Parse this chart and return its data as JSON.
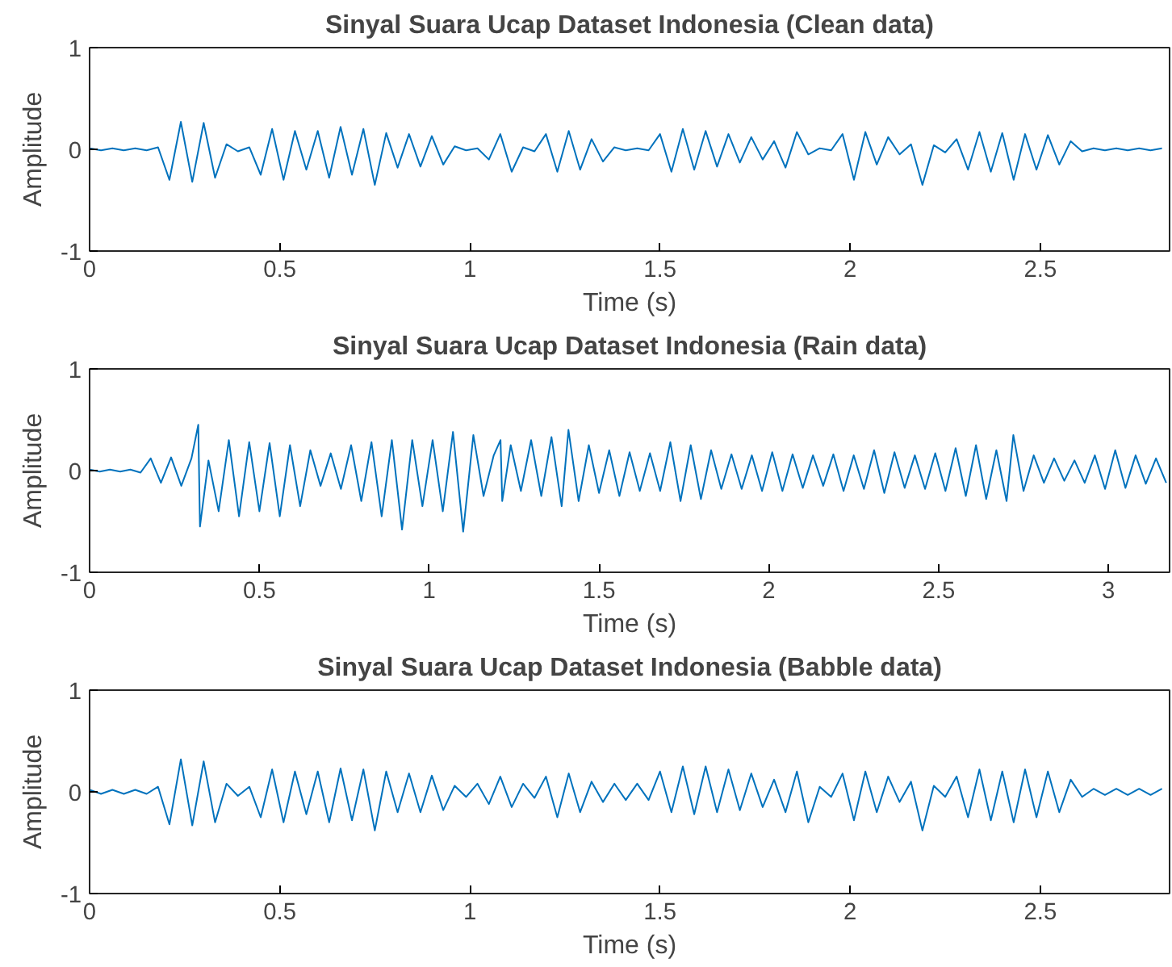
{
  "chart_data": [
    {
      "type": "line",
      "title": "Sinyal Suara Ucap Dataset Indonesia (Clean data)",
      "xlabel": "Time (s)",
      "ylabel": "Amplitude",
      "color": "#0072bd",
      "xlim": [
        0,
        2.84
      ],
      "ylim": [
        -1,
        1
      ],
      "xticks": [
        0,
        0.5,
        1,
        1.5,
        2,
        2.5
      ],
      "yticks": [
        -1,
        0,
        1
      ],
      "x": [
        0,
        0.03,
        0.06,
        0.09,
        0.12,
        0.15,
        0.18,
        0.21,
        0.24,
        0.27,
        0.3,
        0.33,
        0.36,
        0.39,
        0.42,
        0.45,
        0.48,
        0.51,
        0.54,
        0.57,
        0.6,
        0.63,
        0.66,
        0.69,
        0.72,
        0.75,
        0.78,
        0.81,
        0.84,
        0.87,
        0.9,
        0.93,
        0.96,
        0.99,
        1.02,
        1.05,
        1.08,
        1.11,
        1.14,
        1.17,
        1.2,
        1.23,
        1.26,
        1.29,
        1.32,
        1.35,
        1.38,
        1.41,
        1.44,
        1.47,
        1.5,
        1.53,
        1.56,
        1.59,
        1.62,
        1.65,
        1.68,
        1.71,
        1.74,
        1.77,
        1.8,
        1.83,
        1.86,
        1.89,
        1.92,
        1.95,
        1.98,
        2.01,
        2.04,
        2.07,
        2.1,
        2.13,
        2.16,
        2.19,
        2.22,
        2.25,
        2.28,
        2.31,
        2.34,
        2.37,
        2.4,
        2.43,
        2.46,
        2.49,
        2.52,
        2.55,
        2.58,
        2.61,
        2.64,
        2.67,
        2.7,
        2.73,
        2.76,
        2.79,
        2.82
      ],
      "values": [
        0.01,
        -0.01,
        0.01,
        -0.01,
        0.01,
        -0.01,
        0.02,
        -0.3,
        0.27,
        -0.32,
        0.26,
        -0.28,
        0.05,
        -0.02,
        0.02,
        -0.25,
        0.2,
        -0.3,
        0.18,
        -0.2,
        0.18,
        -0.28,
        0.22,
        -0.25,
        0.2,
        -0.35,
        0.16,
        -0.18,
        0.15,
        -0.17,
        0.13,
        -0.15,
        0.03,
        -0.01,
        0.01,
        -0.1,
        0.15,
        -0.22,
        0.02,
        -0.02,
        0.15,
        -0.22,
        0.18,
        -0.2,
        0.1,
        -0.12,
        0.02,
        -0.01,
        0.01,
        -0.01,
        0.15,
        -0.22,
        0.2,
        -0.2,
        0.18,
        -0.17,
        0.15,
        -0.13,
        0.12,
        -0.1,
        0.08,
        -0.18,
        0.17,
        -0.05,
        0.01,
        -0.01,
        0.15,
        -0.3,
        0.17,
        -0.15,
        0.12,
        -0.05,
        0.05,
        -0.35,
        0.04,
        -0.03,
        0.1,
        -0.2,
        0.17,
        -0.22,
        0.16,
        -0.3,
        0.15,
        -0.2,
        0.14,
        -0.15,
        0.08,
        -0.02,
        0.01,
        -0.01,
        0.01,
        -0.01,
        0.01,
        -0.01,
        0.01
      ]
    },
    {
      "type": "line",
      "title": "Sinyal Suara Ucap Dataset Indonesia (Rain data)",
      "xlabel": "Time (s)",
      "ylabel": "Amplitude",
      "color": "#0072bd",
      "xlim": [
        0,
        3.18
      ],
      "ylim": [
        -1,
        1
      ],
      "xticks": [
        0,
        0.5,
        1,
        1.5,
        2,
        2.5,
        3
      ],
      "yticks": [
        -1,
        0,
        1
      ],
      "x": [
        0,
        0.03,
        0.06,
        0.09,
        0.12,
        0.15,
        0.18,
        0.21,
        0.24,
        0.27,
        0.3,
        0.32,
        0.325,
        0.35,
        0.38,
        0.41,
        0.44,
        0.47,
        0.5,
        0.53,
        0.56,
        0.59,
        0.62,
        0.65,
        0.68,
        0.71,
        0.74,
        0.77,
        0.8,
        0.83,
        0.86,
        0.89,
        0.92,
        0.95,
        0.98,
        1.01,
        1.04,
        1.07,
        1.1,
        1.13,
        1.16,
        1.19,
        1.21,
        1.215,
        1.24,
        1.27,
        1.3,
        1.33,
        1.36,
        1.39,
        1.41,
        1.44,
        1.47,
        1.5,
        1.53,
        1.56,
        1.59,
        1.62,
        1.65,
        1.68,
        1.71,
        1.74,
        1.77,
        1.8,
        1.83,
        1.86,
        1.89,
        1.92,
        1.95,
        1.98,
        2.01,
        2.04,
        2.07,
        2.1,
        2.13,
        2.16,
        2.19,
        2.22,
        2.25,
        2.28,
        2.31,
        2.34,
        2.37,
        2.4,
        2.43,
        2.46,
        2.49,
        2.52,
        2.55,
        2.58,
        2.61,
        2.64,
        2.67,
        2.7,
        2.72,
        2.75,
        2.78,
        2.81,
        2.84,
        2.87,
        2.9,
        2.93,
        2.96,
        2.99,
        3.02,
        3.05,
        3.08,
        3.11,
        3.14,
        3.17
      ],
      "values": [
        0.01,
        -0.01,
        0.01,
        -0.01,
        0.01,
        -0.02,
        0.12,
        -0.12,
        0.13,
        -0.15,
        0.12,
        0.45,
        -0.55,
        0.1,
        -0.4,
        0.3,
        -0.45,
        0.28,
        -0.4,
        0.27,
        -0.45,
        0.25,
        -0.35,
        0.2,
        -0.15,
        0.17,
        -0.18,
        0.25,
        -0.3,
        0.28,
        -0.45,
        0.3,
        -0.58,
        0.3,
        -0.35,
        0.3,
        -0.4,
        0.38,
        -0.6,
        0.35,
        -0.25,
        0.15,
        0.3,
        -0.3,
        0.25,
        -0.2,
        0.3,
        -0.25,
        0.33,
        -0.35,
        0.4,
        -0.3,
        0.25,
        -0.22,
        0.2,
        -0.25,
        0.18,
        -0.2,
        0.17,
        -0.2,
        0.28,
        -0.3,
        0.25,
        -0.28,
        0.2,
        -0.18,
        0.16,
        -0.18,
        0.15,
        -0.2,
        0.18,
        -0.2,
        0.16,
        -0.17,
        0.15,
        -0.15,
        0.16,
        -0.2,
        0.15,
        -0.18,
        0.2,
        -0.22,
        0.18,
        -0.17,
        0.15,
        -0.18,
        0.17,
        -0.2,
        0.22,
        -0.25,
        0.25,
        -0.28,
        0.2,
        -0.3,
        0.35,
        -0.2,
        0.15,
        -0.12,
        0.12,
        -0.1,
        0.1,
        -0.12,
        0.15,
        -0.18,
        0.2,
        -0.17,
        0.15,
        -0.13,
        0.12,
        -0.12
      ]
    },
    {
      "type": "line",
      "title": "Sinyal Suara Ucap Dataset Indonesia (Babble data)",
      "xlabel": "Time (s)",
      "ylabel": "Amplitude",
      "color": "#0072bd",
      "xlim": [
        0,
        2.84
      ],
      "ylim": [
        -1,
        1
      ],
      "xticks": [
        0,
        0.5,
        1,
        1.5,
        2,
        2.5
      ],
      "yticks": [
        -1,
        0,
        1
      ],
      "x": [
        0,
        0.03,
        0.06,
        0.09,
        0.12,
        0.15,
        0.18,
        0.21,
        0.24,
        0.27,
        0.3,
        0.33,
        0.36,
        0.39,
        0.42,
        0.45,
        0.48,
        0.51,
        0.54,
        0.57,
        0.6,
        0.63,
        0.66,
        0.69,
        0.72,
        0.75,
        0.78,
        0.81,
        0.84,
        0.87,
        0.9,
        0.93,
        0.96,
        0.99,
        1.02,
        1.05,
        1.08,
        1.11,
        1.14,
        1.17,
        1.2,
        1.23,
        1.26,
        1.29,
        1.32,
        1.35,
        1.38,
        1.41,
        1.44,
        1.47,
        1.5,
        1.53,
        1.56,
        1.59,
        1.62,
        1.65,
        1.68,
        1.71,
        1.74,
        1.77,
        1.8,
        1.83,
        1.86,
        1.89,
        1.92,
        1.95,
        1.98,
        2.01,
        2.04,
        2.07,
        2.1,
        2.13,
        2.16,
        2.19,
        2.22,
        2.25,
        2.28,
        2.31,
        2.34,
        2.37,
        2.4,
        2.43,
        2.46,
        2.49,
        2.52,
        2.55,
        2.58,
        2.61,
        2.64,
        2.67,
        2.7,
        2.73,
        2.76,
        2.79,
        2.82
      ],
      "values": [
        0.02,
        -0.02,
        0.02,
        -0.02,
        0.02,
        -0.02,
        0.05,
        -0.32,
        0.32,
        -0.33,
        0.3,
        -0.3,
        0.08,
        -0.04,
        0.05,
        -0.25,
        0.22,
        -0.3,
        0.2,
        -0.22,
        0.2,
        -0.3,
        0.23,
        -0.28,
        0.22,
        -0.38,
        0.2,
        -0.2,
        0.18,
        -0.2,
        0.16,
        -0.18,
        0.06,
        -0.05,
        0.08,
        -0.12,
        0.15,
        -0.15,
        0.08,
        -0.06,
        0.15,
        -0.25,
        0.18,
        -0.2,
        0.1,
        -0.1,
        0.08,
        -0.08,
        0.08,
        -0.08,
        0.2,
        -0.2,
        0.25,
        -0.22,
        0.25,
        -0.2,
        0.22,
        -0.18,
        0.18,
        -0.15,
        0.12,
        -0.2,
        0.2,
        -0.3,
        0.05,
        -0.05,
        0.18,
        -0.28,
        0.2,
        -0.2,
        0.15,
        -0.1,
        0.1,
        -0.38,
        0.06,
        -0.05,
        0.15,
        -0.25,
        0.22,
        -0.28,
        0.2,
        -0.3,
        0.22,
        -0.25,
        0.2,
        -0.2,
        0.12,
        -0.05,
        0.03,
        -0.03,
        0.03,
        -0.03,
        0.03,
        -0.03,
        0.03
      ]
    }
  ]
}
